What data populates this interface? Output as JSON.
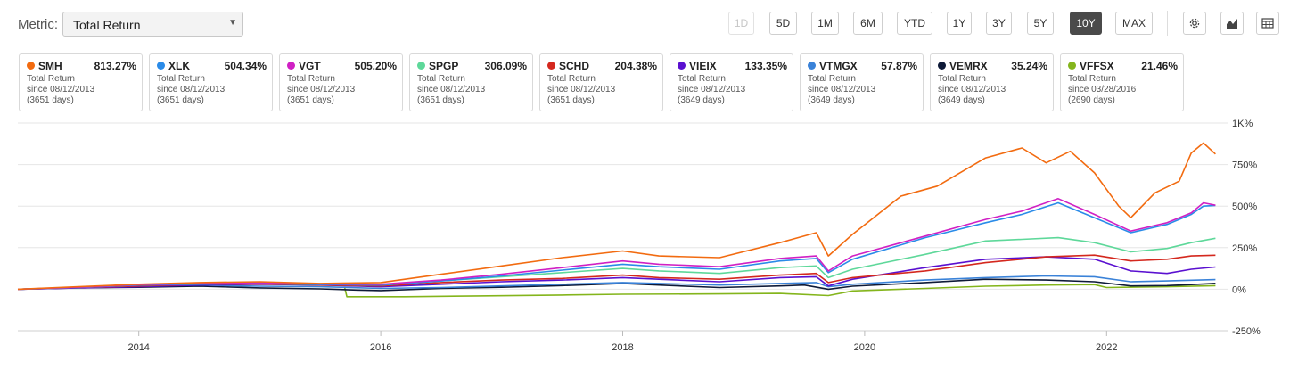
{
  "toolbar": {
    "metric_label": "Metric:",
    "metric_value": "Total Return",
    "ranges": [
      {
        "label": "1D",
        "state": "disabled"
      },
      {
        "label": "5D",
        "state": "normal"
      },
      {
        "label": "1M",
        "state": "normal"
      },
      {
        "label": "6M",
        "state": "normal"
      },
      {
        "label": "YTD",
        "state": "normal"
      },
      {
        "label": "1Y",
        "state": "normal"
      },
      {
        "label": "3Y",
        "state": "normal"
      },
      {
        "label": "5Y",
        "state": "normal"
      },
      {
        "label": "10Y",
        "state": "active"
      },
      {
        "label": "MAX",
        "state": "normal"
      }
    ],
    "tools": [
      "gear-icon",
      "chart-type-icon",
      "table-icon"
    ]
  },
  "cards": [
    {
      "ticker": "SMH",
      "value": "813.27%",
      "metric": "Total Return",
      "since": "since 08/12/2013",
      "days": "(3651 days)",
      "color": "#f26b10"
    },
    {
      "ticker": "XLK",
      "value": "504.34%",
      "metric": "Total Return",
      "since": "since 08/12/2013",
      "days": "(3651 days)",
      "color": "#2a8be8"
    },
    {
      "ticker": "VGT",
      "value": "505.20%",
      "metric": "Total Return",
      "since": "since 08/12/2013",
      "days": "(3651 days)",
      "color": "#d020c4"
    },
    {
      "ticker": "SPGP",
      "value": "306.09%",
      "metric": "Total Return",
      "since": "since 08/12/2013",
      "days": "(3651 days)",
      "color": "#5ed89a"
    },
    {
      "ticker": "SCHD",
      "value": "204.38%",
      "metric": "Total Return",
      "since": "since 08/12/2013",
      "days": "(3651 days)",
      "color": "#d4281e"
    },
    {
      "ticker": "VIEIX",
      "value": "133.35%",
      "metric": "Total Return",
      "since": "since 08/12/2013",
      "days": "(3649 days)",
      "color": "#5a10d0"
    },
    {
      "ticker": "VTMGX",
      "value": "57.87%",
      "metric": "Total Return",
      "since": "since 08/12/2013",
      "days": "(3649 days)",
      "color": "#3a82d8"
    },
    {
      "ticker": "VEMRX",
      "value": "35.24%",
      "metric": "Total Return",
      "since": "since 08/12/2013",
      "days": "(3649 days)",
      "color": "#0e1a38"
    },
    {
      "ticker": "VFFSX",
      "value": "21.46%",
      "metric": "Total Return",
      "since": "since 03/28/2016",
      "days": "(2690 days)",
      "color": "#84b51c"
    }
  ],
  "chart_data": {
    "type": "line",
    "title": "",
    "xlabel": "",
    "ylabel": "",
    "x_range": [
      2013.0,
      2023.0
    ],
    "x_ticks": [
      2014,
      2016,
      2018,
      2020,
      2022
    ],
    "ylim": [
      -250,
      1000
    ],
    "y_ticks": [
      {
        "value": 1000,
        "label": "1K%"
      },
      {
        "value": 750,
        "label": "750%"
      },
      {
        "value": 500,
        "label": "500%"
      },
      {
        "value": 250,
        "label": "250%"
      },
      {
        "value": 0,
        "label": "0%"
      },
      {
        "value": -250,
        "label": "-250%"
      }
    ],
    "grid": true,
    "legend": "cards-top",
    "series": [
      {
        "name": "VFFSX",
        "color": "#84b51c",
        "points": [
          [
            2015.7,
            15
          ],
          [
            2015.72,
            -45
          ],
          [
            2016.2,
            -45
          ],
          [
            2016.8,
            -40
          ],
          [
            2017.5,
            -35
          ],
          [
            2018.0,
            -30
          ],
          [
            2018.8,
            -28
          ],
          [
            2019.3,
            -25
          ],
          [
            2019.7,
            -38
          ],
          [
            2019.9,
            -10
          ],
          [
            2020.5,
            5
          ],
          [
            2021.0,
            18
          ],
          [
            2021.5,
            25
          ],
          [
            2021.9,
            28
          ],
          [
            2022.0,
            10
          ],
          [
            2022.5,
            15
          ],
          [
            2022.9,
            21.46
          ]
        ]
      },
      {
        "name": "VEMRX",
        "color": "#0e1a38",
        "points": [
          [
            2013.0,
            0
          ],
          [
            2013.5,
            8
          ],
          [
            2014.0,
            12
          ],
          [
            2014.5,
            18
          ],
          [
            2015.0,
            8
          ],
          [
            2015.5,
            2
          ],
          [
            2015.8,
            -5
          ],
          [
            2016.0,
            -8
          ],
          [
            2016.5,
            5
          ],
          [
            2017.0,
            12
          ],
          [
            2017.5,
            22
          ],
          [
            2018.0,
            35
          ],
          [
            2018.3,
            25
          ],
          [
            2018.8,
            10
          ],
          [
            2019.3,
            20
          ],
          [
            2019.5,
            25
          ],
          [
            2019.7,
            0
          ],
          [
            2019.9,
            18
          ],
          [
            2020.5,
            40
          ],
          [
            2021.0,
            60
          ],
          [
            2021.5,
            55
          ],
          [
            2021.9,
            45
          ],
          [
            2022.2,
            20
          ],
          [
            2022.5,
            22
          ],
          [
            2022.7,
            28
          ],
          [
            2022.9,
            35.24
          ]
        ]
      },
      {
        "name": "VTMGX",
        "color": "#3a82d8",
        "points": [
          [
            2013.0,
            0
          ],
          [
            2013.5,
            10
          ],
          [
            2014.0,
            20
          ],
          [
            2014.5,
            25
          ],
          [
            2015.0,
            18
          ],
          [
            2015.5,
            15
          ],
          [
            2016.0,
            5
          ],
          [
            2016.5,
            10
          ],
          [
            2017.0,
            20
          ],
          [
            2017.5,
            30
          ],
          [
            2018.0,
            40
          ],
          [
            2018.3,
            35
          ],
          [
            2018.8,
            25
          ],
          [
            2019.3,
            35
          ],
          [
            2019.6,
            40
          ],
          [
            2019.7,
            15
          ],
          [
            2019.9,
            30
          ],
          [
            2020.5,
            55
          ],
          [
            2021.0,
            70
          ],
          [
            2021.5,
            80
          ],
          [
            2021.9,
            75
          ],
          [
            2022.2,
            45
          ],
          [
            2022.5,
            50
          ],
          [
            2022.9,
            57.87
          ]
        ]
      },
      {
        "name": "VIEIX",
        "color": "#5a10d0",
        "points": [
          [
            2013.0,
            0
          ],
          [
            2013.5,
            8
          ],
          [
            2014.0,
            15
          ],
          [
            2014.5,
            25
          ],
          [
            2015.0,
            30
          ],
          [
            2015.5,
            25
          ],
          [
            2016.0,
            15
          ],
          [
            2016.5,
            30
          ],
          [
            2017.0,
            45
          ],
          [
            2017.5,
            55
          ],
          [
            2018.0,
            70
          ],
          [
            2018.3,
            60
          ],
          [
            2018.8,
            45
          ],
          [
            2019.3,
            70
          ],
          [
            2019.6,
            75
          ],
          [
            2019.7,
            20
          ],
          [
            2019.9,
            60
          ],
          [
            2020.5,
            130
          ],
          [
            2021.0,
            180
          ],
          [
            2021.5,
            195
          ],
          [
            2021.9,
            180
          ],
          [
            2022.2,
            110
          ],
          [
            2022.5,
            95
          ],
          [
            2022.7,
            120
          ],
          [
            2022.9,
            133.35
          ]
        ]
      },
      {
        "name": "SCHD",
        "color": "#d4281e",
        "points": [
          [
            2013.0,
            0
          ],
          [
            2013.5,
            10
          ],
          [
            2014.0,
            20
          ],
          [
            2014.5,
            30
          ],
          [
            2015.0,
            32
          ],
          [
            2015.5,
            25
          ],
          [
            2016.0,
            20
          ],
          [
            2016.5,
            40
          ],
          [
            2017.0,
            55
          ],
          [
            2017.5,
            65
          ],
          [
            2018.0,
            85
          ],
          [
            2018.3,
            70
          ],
          [
            2018.8,
            60
          ],
          [
            2019.3,
            85
          ],
          [
            2019.6,
            95
          ],
          [
            2019.7,
            40
          ],
          [
            2019.9,
            70
          ],
          [
            2020.5,
            110
          ],
          [
            2021.0,
            160
          ],
          [
            2021.5,
            195
          ],
          [
            2021.9,
            205
          ],
          [
            2022.2,
            170
          ],
          [
            2022.5,
            180
          ],
          [
            2022.7,
            200
          ],
          [
            2022.9,
            204.38
          ]
        ]
      },
      {
        "name": "SPGP",
        "color": "#5ed89a",
        "points": [
          [
            2013.0,
            0
          ],
          [
            2013.5,
            10
          ],
          [
            2014.0,
            25
          ],
          [
            2014.5,
            35
          ],
          [
            2015.0,
            38
          ],
          [
            2015.5,
            30
          ],
          [
            2016.0,
            25
          ],
          [
            2016.5,
            50
          ],
          [
            2017.0,
            75
          ],
          [
            2017.5,
            100
          ],
          [
            2018.0,
            125
          ],
          [
            2018.3,
            110
          ],
          [
            2018.8,
            95
          ],
          [
            2019.3,
            130
          ],
          [
            2019.6,
            140
          ],
          [
            2019.7,
            70
          ],
          [
            2019.9,
            120
          ],
          [
            2020.5,
            210
          ],
          [
            2021.0,
            290
          ],
          [
            2021.3,
            300
          ],
          [
            2021.6,
            310
          ],
          [
            2021.9,
            280
          ],
          [
            2022.2,
            225
          ],
          [
            2022.5,
            245
          ],
          [
            2022.7,
            280
          ],
          [
            2022.9,
            306.09
          ]
        ]
      },
      {
        "name": "XLK",
        "color": "#2a8be8",
        "points": [
          [
            2013.0,
            0
          ],
          [
            2013.5,
            10
          ],
          [
            2014.0,
            25
          ],
          [
            2014.5,
            30
          ],
          [
            2015.0,
            35
          ],
          [
            2015.5,
            28
          ],
          [
            2016.0,
            25
          ],
          [
            2016.5,
            50
          ],
          [
            2017.0,
            80
          ],
          [
            2017.5,
            115
          ],
          [
            2018.0,
            150
          ],
          [
            2018.3,
            135
          ],
          [
            2018.8,
            120
          ],
          [
            2019.3,
            170
          ],
          [
            2019.6,
            185
          ],
          [
            2019.7,
            100
          ],
          [
            2019.9,
            180
          ],
          [
            2020.5,
            310
          ],
          [
            2021.0,
            400
          ],
          [
            2021.3,
            450
          ],
          [
            2021.6,
            520
          ],
          [
            2021.9,
            430
          ],
          [
            2022.2,
            340
          ],
          [
            2022.5,
            390
          ],
          [
            2022.7,
            450
          ],
          [
            2022.8,
            500
          ],
          [
            2022.9,
            504.34
          ]
        ]
      },
      {
        "name": "VGT",
        "color": "#d020c4",
        "points": [
          [
            2013.0,
            0
          ],
          [
            2013.5,
            12
          ],
          [
            2014.0,
            28
          ],
          [
            2014.5,
            35
          ],
          [
            2015.0,
            40
          ],
          [
            2015.5,
            32
          ],
          [
            2016.0,
            30
          ],
          [
            2016.5,
            55
          ],
          [
            2017.0,
            90
          ],
          [
            2017.5,
            130
          ],
          [
            2018.0,
            170
          ],
          [
            2018.3,
            150
          ],
          [
            2018.8,
            135
          ],
          [
            2019.3,
            185
          ],
          [
            2019.6,
            200
          ],
          [
            2019.7,
            110
          ],
          [
            2019.9,
            200
          ],
          [
            2020.5,
            320
          ],
          [
            2021.0,
            420
          ],
          [
            2021.3,
            470
          ],
          [
            2021.6,
            545
          ],
          [
            2021.9,
            450
          ],
          [
            2022.2,
            350
          ],
          [
            2022.5,
            400
          ],
          [
            2022.7,
            460
          ],
          [
            2022.8,
            520
          ],
          [
            2022.9,
            505.2
          ]
        ]
      },
      {
        "name": "SMH",
        "color": "#f26b10",
        "points": [
          [
            2013.0,
            0
          ],
          [
            2013.5,
            15
          ],
          [
            2014.0,
            30
          ],
          [
            2014.5,
            40
          ],
          [
            2015.0,
            45
          ],
          [
            2015.5,
            35
          ],
          [
            2016.0,
            40
          ],
          [
            2016.5,
            90
          ],
          [
            2017.0,
            140
          ],
          [
            2017.5,
            190
          ],
          [
            2018.0,
            230
          ],
          [
            2018.3,
            200
          ],
          [
            2018.8,
            190
          ],
          [
            2019.3,
            280
          ],
          [
            2019.6,
            340
          ],
          [
            2019.7,
            200
          ],
          [
            2019.9,
            330
          ],
          [
            2020.3,
            560
          ],
          [
            2020.6,
            620
          ],
          [
            2021.0,
            790
          ],
          [
            2021.3,
            850
          ],
          [
            2021.5,
            760
          ],
          [
            2021.7,
            830
          ],
          [
            2021.9,
            700
          ],
          [
            2022.1,
            500
          ],
          [
            2022.2,
            430
          ],
          [
            2022.4,
            580
          ],
          [
            2022.6,
            650
          ],
          [
            2022.7,
            820
          ],
          [
            2022.8,
            880
          ],
          [
            2022.9,
            813.27
          ]
        ]
      }
    ]
  }
}
